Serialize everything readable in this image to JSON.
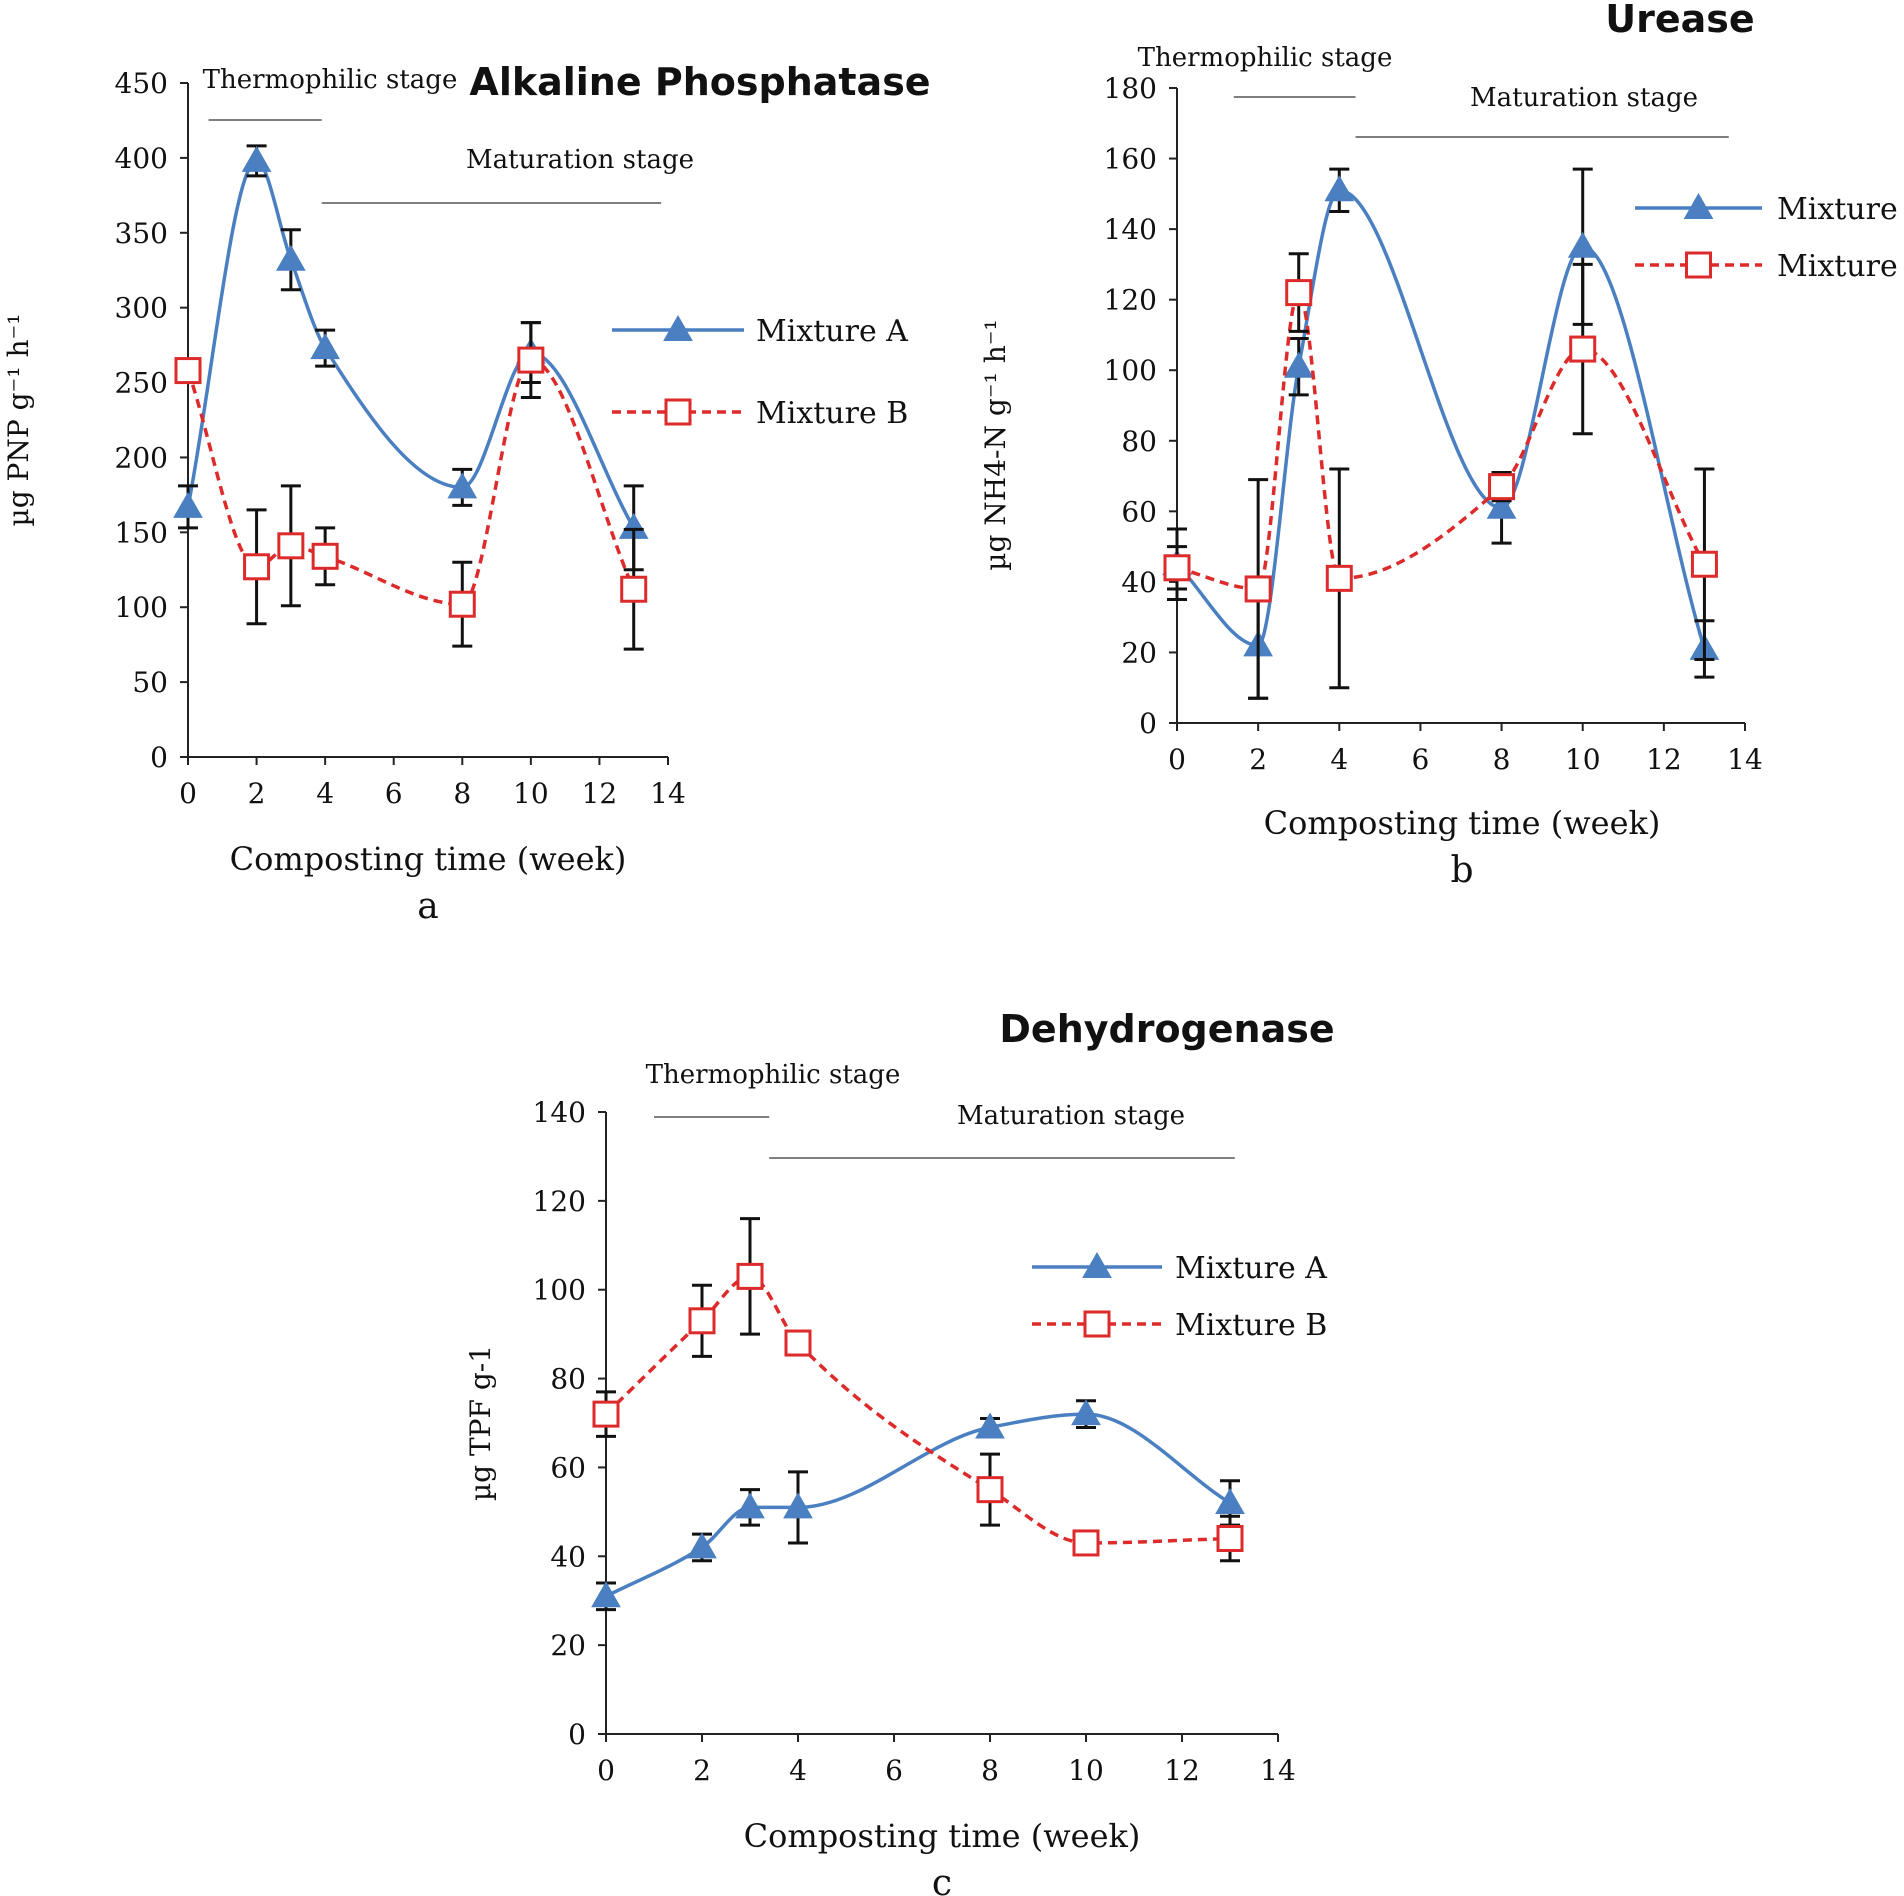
{
  "colors": {
    "mixture_a": "#4a7fc1",
    "mixture_b": "#dd2a2a",
    "axis": "#222222",
    "error_bar": "#111111"
  },
  "chart_data": [
    {
      "type": "line",
      "panel_label": "a",
      "title": "Alkaline Phosphatase",
      "xlabel": "Composting time (week)",
      "ylabel": "µg PNP g⁻¹ h⁻¹",
      "xlim": [
        0,
        14
      ],
      "ylim": [
        0,
        450
      ],
      "xticks": [
        0,
        2,
        4,
        6,
        8,
        10,
        12,
        14
      ],
      "yticks": [
        0,
        50,
        100,
        150,
        200,
        250,
        300,
        350,
        400,
        450
      ],
      "x": [
        0,
        2,
        3,
        4,
        8,
        10,
        13
      ],
      "stages": [
        {
          "label": "Thermophilic stage",
          "from": 0.6,
          "to": 3.9
        },
        {
          "label": "Maturation stage",
          "from": 3.9,
          "to": 13.8
        }
      ],
      "series": [
        {
          "name": "Mixture A",
          "marker": "triangle",
          "dashed": false,
          "values": [
            167,
            398,
            332,
            273,
            180,
            270,
            153
          ],
          "errors": [
            14,
            10,
            20,
            12,
            12,
            20,
            28
          ]
        },
        {
          "name": "Mixture B",
          "marker": "square",
          "dashed": true,
          "values": [
            258,
            127,
            141,
            134,
            102,
            265,
            112
          ],
          "errors": [
            0,
            38,
            40,
            19,
            28,
            25,
            40
          ]
        }
      ]
    },
    {
      "type": "line",
      "panel_label": "b",
      "title": "Urease",
      "xlabel": "Composting time (week)",
      "ylabel": "µg NH4-N g⁻¹ h⁻¹",
      "xlim": [
        0,
        14
      ],
      "ylim": [
        0,
        180
      ],
      "xticks": [
        0,
        2,
        4,
        6,
        8,
        10,
        12,
        14
      ],
      "yticks": [
        0,
        20,
        40,
        60,
        80,
        100,
        120,
        140,
        160,
        180
      ],
      "x": [
        0,
        2,
        3,
        4,
        8,
        10,
        13
      ],
      "stages": [
        {
          "label": "Thermophilic stage",
          "from": 1.4,
          "to": 4.4
        },
        {
          "label": "Maturation stage",
          "from": 4.4,
          "to": 13.6
        }
      ],
      "series": [
        {
          "name": "Mixture A",
          "marker": "triangle",
          "dashed": false,
          "values": [
            45,
            22,
            101,
            151,
            61,
            135,
            21
          ],
          "errors": [
            10,
            15,
            8,
            6,
            10,
            22,
            8
          ]
        },
        {
          "name": "Mixture B",
          "marker": "square",
          "dashed": true,
          "values": [
            44,
            38,
            122,
            41,
            67,
            106,
            45
          ],
          "errors": [
            6,
            31,
            11,
            31,
            4,
            24,
            27
          ]
        }
      ]
    },
    {
      "type": "line",
      "panel_label": "c",
      "title": "Dehydrogenase",
      "xlabel": "Composting time (week)",
      "ylabel": "µg TPF g-1",
      "xlim": [
        0,
        14
      ],
      "ylim": [
        0,
        140
      ],
      "xticks": [
        0,
        2,
        4,
        6,
        8,
        10,
        12,
        14
      ],
      "yticks": [
        0,
        20,
        40,
        60,
        80,
        100,
        120,
        140
      ],
      "x": [
        0,
        2,
        3,
        4,
        8,
        10,
        13
      ],
      "stages": [
        {
          "label": "Thermophilic stage",
          "from": 1.0,
          "to": 3.4
        },
        {
          "label": "Maturation stage",
          "from": 3.4,
          "to": 13.1
        }
      ],
      "series": [
        {
          "name": "Mixture A",
          "marker": "triangle",
          "dashed": false,
          "values": [
            31,
            42,
            51,
            51,
            69,
            72,
            52
          ],
          "errors": [
            3,
            3,
            4,
            8,
            2,
            3,
            5
          ]
        },
        {
          "name": "Mixture B",
          "marker": "square",
          "dashed": true,
          "values": [
            72,
            93,
            103,
            88,
            55,
            43,
            44
          ],
          "errors": [
            5,
            8,
            13,
            0,
            8,
            2,
            5
          ]
        }
      ]
    }
  ]
}
